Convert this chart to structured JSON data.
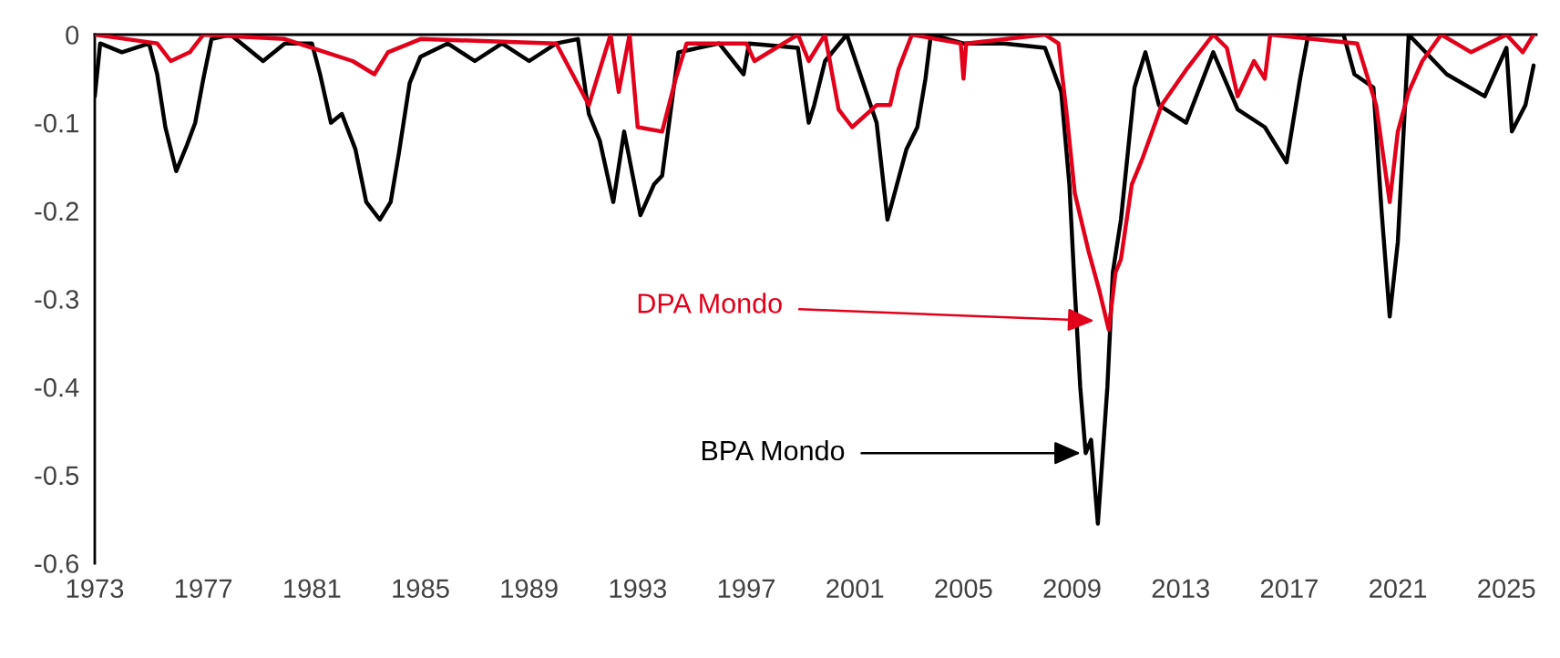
{
  "chart_data": {
    "type": "line",
    "xlim": [
      1973,
      2026.1
    ],
    "ylim": [
      -0.6,
      0
    ],
    "xticks": [
      1973,
      1977,
      1981,
      1985,
      1989,
      1993,
      1997,
      2001,
      2005,
      2009,
      2013,
      2017,
      2021,
      2025
    ],
    "yticks": [
      {
        "value": -0.6,
        "label": "-0.6"
      },
      {
        "value": -0.5,
        "label": "-0.5"
      },
      {
        "value": -0.4,
        "label": "-0.4"
      },
      {
        "value": -0.3,
        "label": "-0.3"
      },
      {
        "value": -0.2,
        "label": "-0.2"
      },
      {
        "value": -0.1,
        "label": "-0.1"
      },
      0
    ],
    "grid": false,
    "legend": false,
    "series": [
      {
        "color": "#000000",
        "x": [
          1973.0,
          1973.2,
          1974.0,
          1975.0,
          1975.3,
          1975.6,
          1976.0,
          1976.4,
          1976.7,
          1977.0,
          1977.3,
          1978.0,
          1979.2,
          1980.0,
          1981.0,
          1981.3,
          1981.7,
          1982.1,
          1982.6,
          1983.0,
          1983.5,
          1983.9,
          1984.2,
          1984.6,
          1985.0,
          1986.0,
          1987.0,
          1988.0,
          1989.0,
          1990.0,
          1990.8,
          1991.2,
          1991.6,
          1992.1,
          1992.5,
          1993.1,
          1993.6,
          1993.9,
          1994.5,
          1996.0,
          1996.9,
          1997.1,
          1998.9,
          1999.3,
          1999.5,
          1999.9,
          2000.7,
          2001.8,
          2002.2,
          2002.9,
          2003.3,
          2003.6,
          2003.8,
          2005.0,
          2006.5,
          2008.0,
          2008.6,
          2008.9,
          2009.1,
          2009.3,
          2009.5,
          2009.7,
          2009.95,
          2010.3,
          2010.5,
          2010.8,
          2011.3,
          2011.7,
          2012.2,
          2013.2,
          2014.2,
          2015.1,
          2016.1,
          2016.9,
          2017.4,
          2017.7,
          2019.0,
          2019.4,
          2020.1,
          2020.4,
          2020.7,
          2021.0,
          2021.4,
          2022.8,
          2024.2,
          2025.0,
          2025.2,
          2025.7,
          2026.0
        ],
        "values": [
          -0.07,
          -0.01,
          -0.02,
          -0.01,
          -0.045,
          -0.105,
          -0.155,
          -0.125,
          -0.1,
          -0.05,
          -0.005,
          0,
          -0.03,
          -0.01,
          -0.01,
          -0.045,
          -0.1,
          -0.09,
          -0.13,
          -0.19,
          -0.21,
          -0.19,
          -0.135,
          -0.055,
          -0.025,
          -0.01,
          -0.03,
          -0.01,
          -0.03,
          -0.01,
          -0.005,
          -0.09,
          -0.12,
          -0.19,
          -0.11,
          -0.205,
          -0.17,
          -0.16,
          -0.02,
          -0.01,
          -0.045,
          -0.01,
          -0.015,
          -0.1,
          -0.08,
          -0.03,
          0,
          -0.1,
          -0.21,
          -0.13,
          -0.105,
          -0.05,
          0,
          -0.01,
          -0.01,
          -0.015,
          -0.065,
          -0.17,
          -0.29,
          -0.4,
          -0.475,
          -0.46,
          -0.555,
          -0.4,
          -0.27,
          -0.21,
          -0.06,
          -0.02,
          -0.08,
          -0.1,
          -0.02,
          -0.085,
          -0.105,
          -0.145,
          -0.05,
          0,
          0,
          -0.045,
          -0.06,
          -0.2,
          -0.32,
          -0.235,
          0,
          -0.045,
          -0.07,
          -0.015,
          -0.11,
          -0.08,
          -0.035
        ]
      },
      {
        "color": "#e2001a",
        "x": [
          1973.0,
          1975.3,
          1975.8,
          1976.5,
          1977.0,
          1980.0,
          1981.5,
          1982.5,
          1983.3,
          1983.8,
          1985.0,
          1990.0,
          1991.2,
          1992.0,
          1992.3,
          1992.7,
          1993.0,
          1993.9,
          1994.4,
          1994.8,
          1997.0,
          1997.3,
          1998.9,
          1999.3,
          1999.9,
          2000.4,
          2000.9,
          2001.8,
          2002.3,
          2002.6,
          2003.1,
          2004.9,
          2005.0,
          2005.1,
          2008.0,
          2008.5,
          2008.8,
          2009.1,
          2009.6,
          2010.0,
          2010.35,
          2010.6,
          2010.8,
          2011.2,
          2011.6,
          2012.3,
          2013.2,
          2014.2,
          2014.7,
          2015.1,
          2015.7,
          2016.1,
          2016.3,
          2019.5,
          2020.2,
          2020.7,
          2021.0,
          2021.4,
          2021.9,
          2022.6,
          2023.7,
          2025.0,
          2025.6,
          2026.0
        ],
        "values": [
          0,
          -0.01,
          -0.03,
          -0.02,
          0,
          -0.005,
          -0.02,
          -0.03,
          -0.045,
          -0.02,
          -0.005,
          -0.01,
          -0.08,
          0,
          -0.065,
          0,
          -0.105,
          -0.11,
          -0.05,
          -0.01,
          -0.01,
          -0.03,
          0,
          -0.03,
          0,
          -0.085,
          -0.105,
          -0.08,
          -0.08,
          -0.04,
          0,
          -0.01,
          -0.05,
          -0.01,
          0,
          -0.01,
          -0.09,
          -0.18,
          -0.245,
          -0.29,
          -0.335,
          -0.27,
          -0.255,
          -0.17,
          -0.14,
          -0.08,
          -0.04,
          0,
          -0.015,
          -0.07,
          -0.03,
          -0.05,
          0,
          -0.01,
          -0.08,
          -0.19,
          -0.11,
          -0.065,
          -0.03,
          0,
          -0.02,
          0,
          -0.02,
          0
        ]
      }
    ],
    "annotations": [
      {
        "text": "BPA Mondo",
        "x": 2009.5,
        "y": -0.475
      },
      {
        "text": "DPA Mondo",
        "x": 2010.0,
        "y": -0.325
      }
    ]
  }
}
